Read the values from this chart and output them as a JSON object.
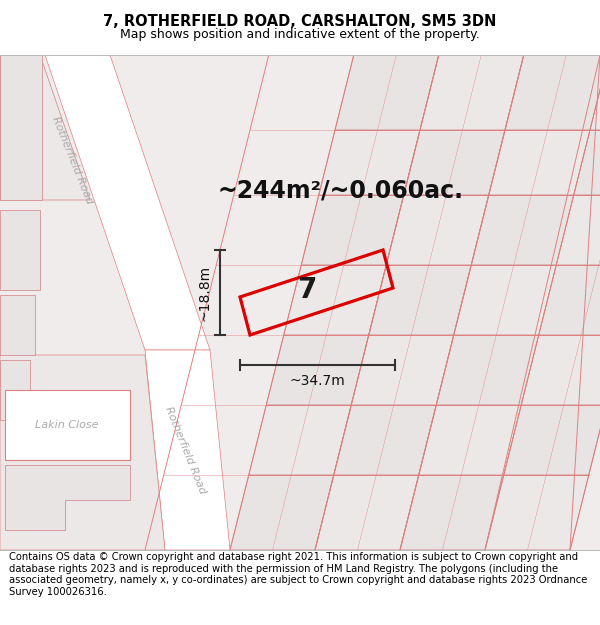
{
  "title": "7, ROTHERFIELD ROAD, CARSHALTON, SM5 3DN",
  "subtitle": "Map shows position and indicative extent of the property.",
  "area_text": "~244m²/~0.060ac.",
  "width_label": "~34.7m",
  "height_label": "~18.8m",
  "number_label": "7",
  "footer_text": "Contains OS data © Crown copyright and database right 2021. This information is subject to Crown copyright and database rights 2023 and is reproduced with the permission of HM Land Registry. The polygons (including the associated geometry, namely x, y co-ordinates) are subject to Crown copyright and database rights 2023 Ordnance Survey 100026316.",
  "bg_color": "#ffffff",
  "map_bg": "#f5f0f0",
  "block_color": "#e8e4e4",
  "road_color": "#ffffff",
  "grid_line_color": "#e08080",
  "block_edge_color": "#d08080",
  "plot_color": "#dd0000",
  "title_fontsize": 10.5,
  "subtitle_fontsize": 9,
  "area_fontsize": 17,
  "dim_fontsize": 10,
  "footer_fontsize": 7.2,
  "road_label_color": "#aaaaaa",
  "road_label_size": 8
}
